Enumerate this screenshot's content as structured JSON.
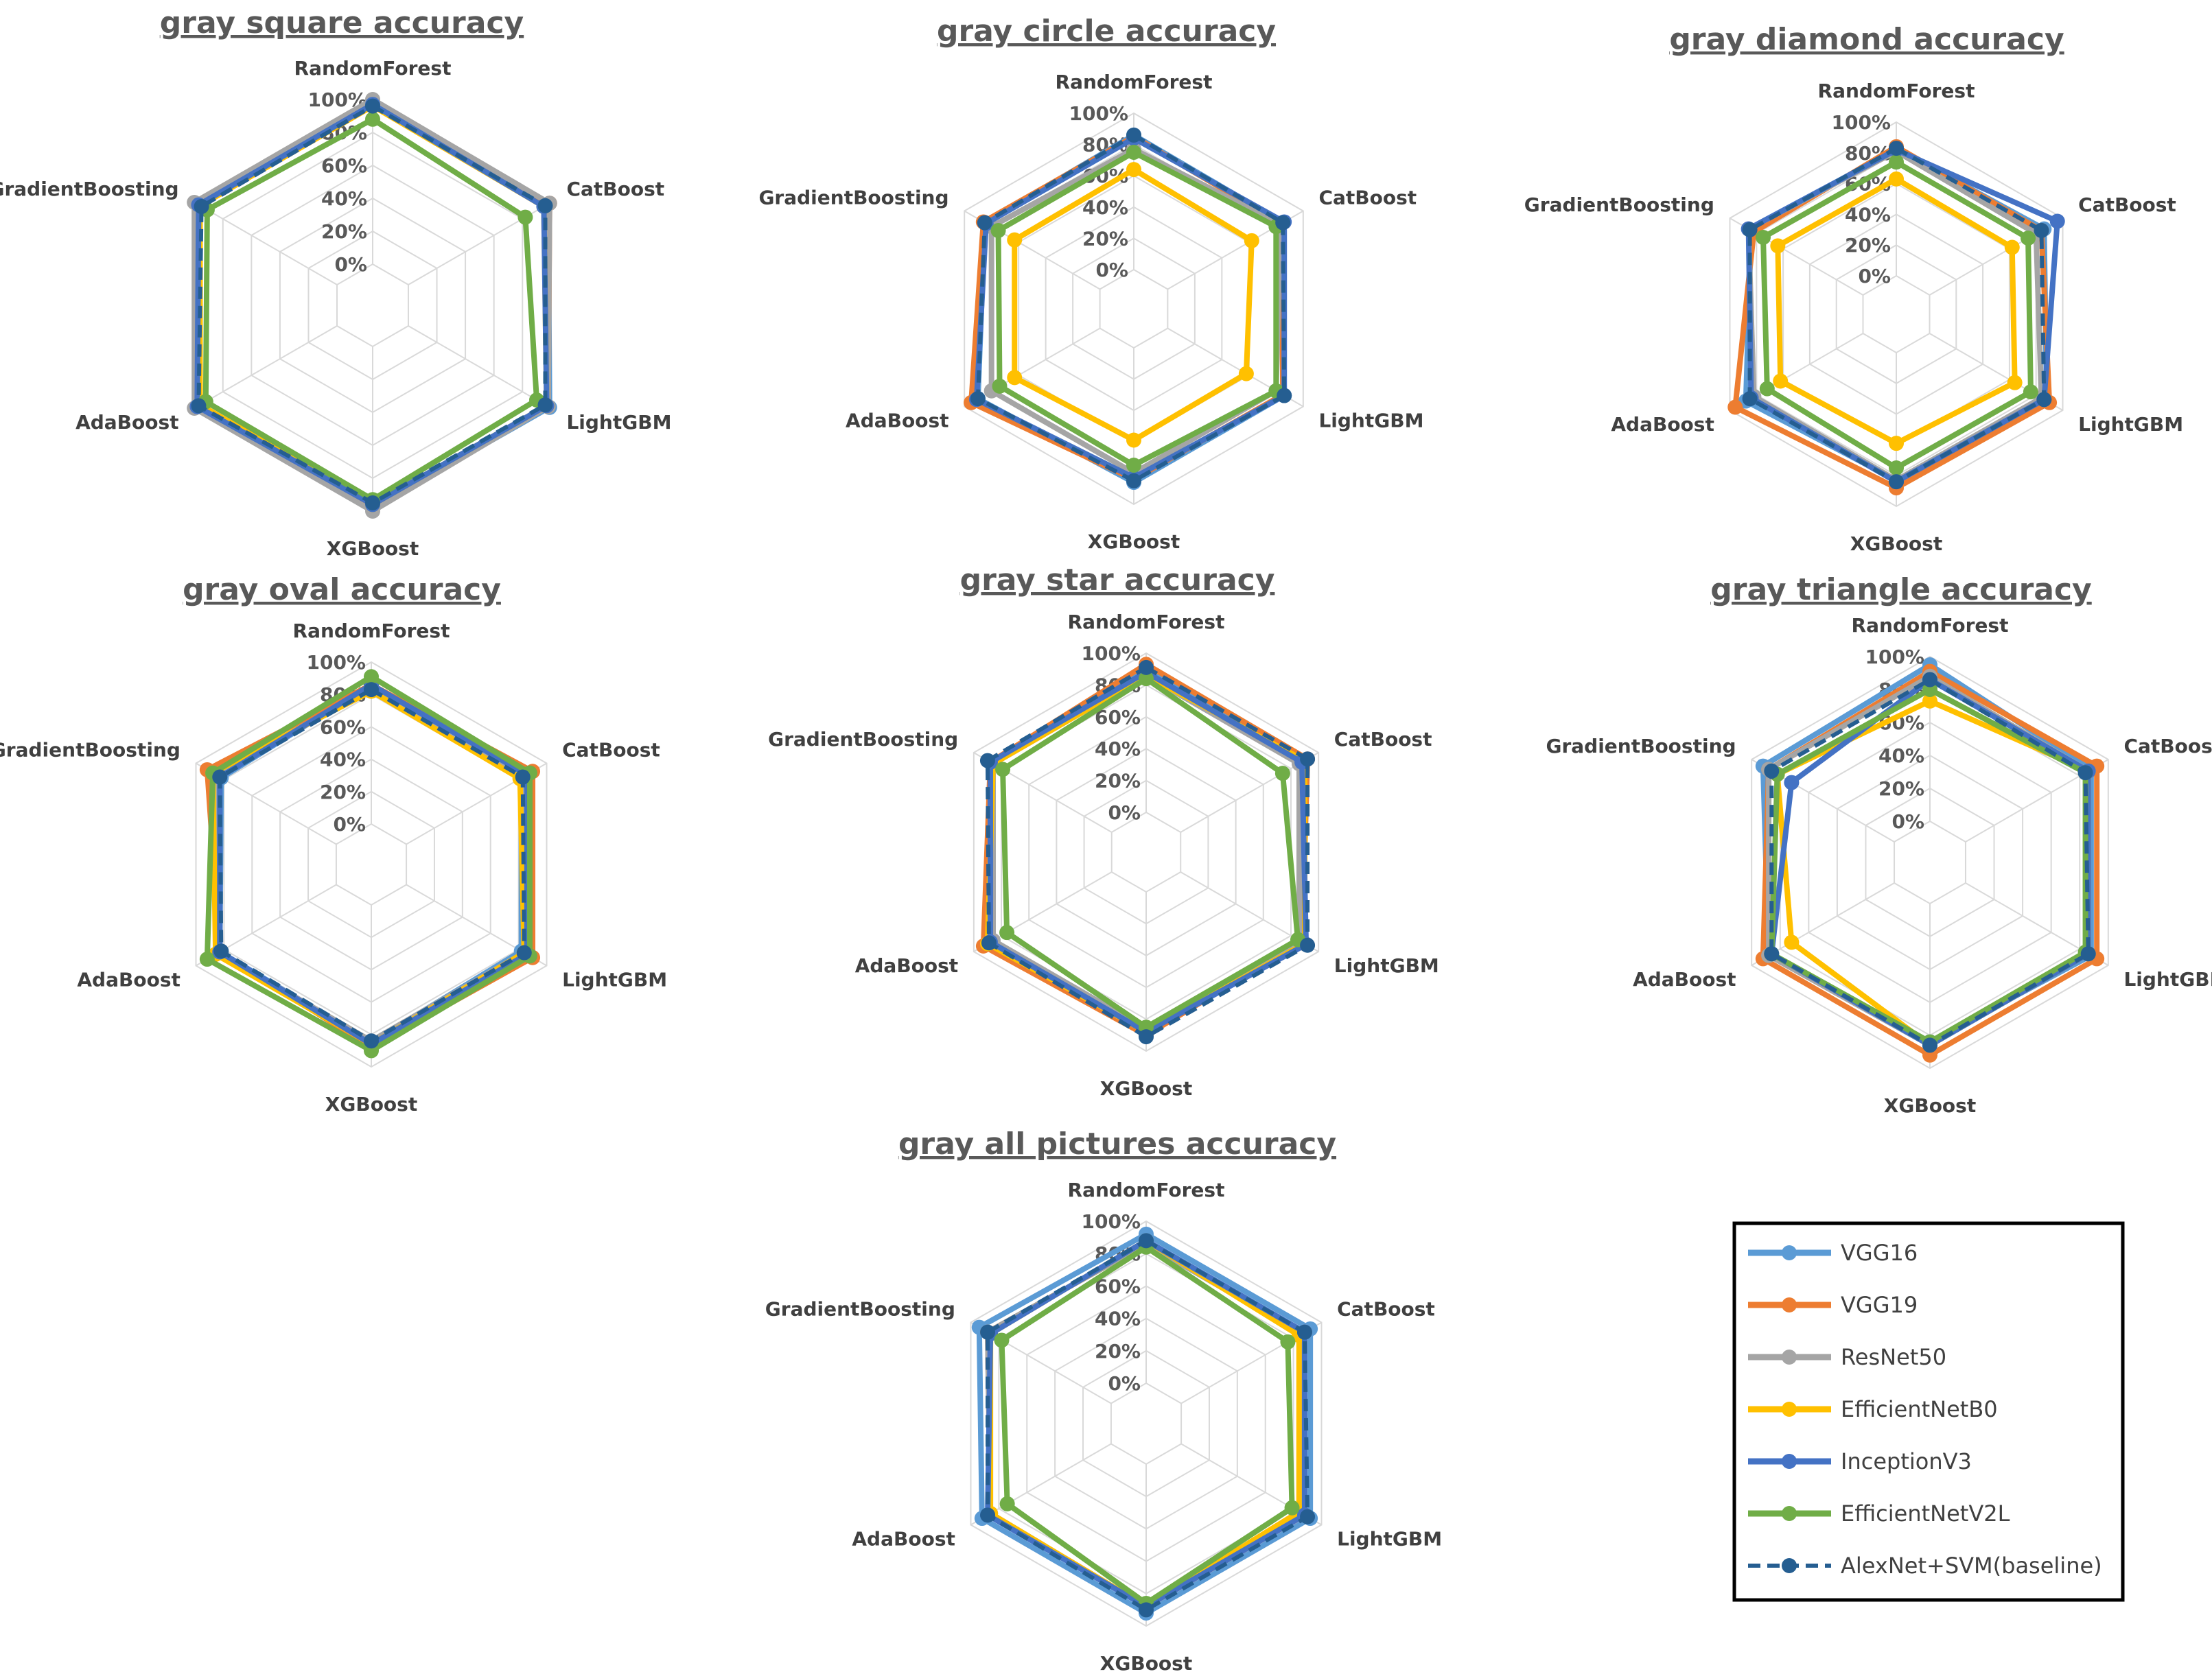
{
  "categories_order": [
    "RandomForest",
    "CatBoost",
    "LightGBM",
    "XGBoost",
    "AdaBoost",
    "GradientBoosting"
  ],
  "series_styles": [
    {
      "name": "VGG16",
      "color": "#5b9bd5",
      "dashed": false
    },
    {
      "name": "VGG19",
      "color": "#ed7d31",
      "dashed": false
    },
    {
      "name": "ResNet50",
      "color": "#a5a5a5",
      "dashed": false
    },
    {
      "name": "EfficientNetB0",
      "color": "#ffc000",
      "dashed": false
    },
    {
      "name": "InceptionV3",
      "color": "#4472c4",
      "dashed": false
    },
    {
      "name": "EfficientNetV2L",
      "color": "#70ad47",
      "dashed": false
    },
    {
      "name": "AlexNet+SVM(baseline)",
      "color": "#255e91",
      "dashed": true
    }
  ],
  "legend": {
    "items": [
      "VGG16",
      "VGG19",
      "ResNet50",
      "EfficientNetB0",
      "InceptionV3",
      "EfficientNetV2L",
      "AlexNet+SVM(baseline)"
    ]
  },
  "chart_data": [
    {
      "id": "square",
      "type": "radar",
      "title": "gray square accuracy",
      "categories": [
        "RandomForest",
        "CatBoost",
        "LightGBM",
        "XGBoost",
        "AdaBoost",
        "GradientBoosting"
      ],
      "ticks": [
        "0%",
        "20%",
        "40%",
        "60%",
        "80%",
        "100%"
      ],
      "rlim": [
        0,
        100
      ],
      "series": [
        {
          "name": "VGG16",
          "values": [
            99,
            98,
            99,
            98,
            99,
            98
          ]
        },
        {
          "name": "VGG19",
          "values": [
            97,
            99,
            98,
            97,
            97,
            97
          ]
        },
        {
          "name": "ResNet50",
          "values": [
            100,
            99,
            98,
            100,
            100,
            100
          ]
        },
        {
          "name": "EfficientNetB0",
          "values": [
            96,
            95,
            97,
            96,
            96,
            96
          ]
        },
        {
          "name": "InceptionV3",
          "values": [
            97,
            95,
            97,
            96,
            98,
            97
          ]
        },
        {
          "name": "EfficientNetV2L",
          "values": [
            88,
            82,
            90,
            93,
            92,
            91
          ]
        },
        {
          "name": "AlexNet+SVM(baseline)",
          "values": [
            96,
            96,
            96,
            95,
            97,
            95
          ]
        }
      ]
    },
    {
      "id": "circle",
      "type": "radar",
      "title": "gray circle accuracy",
      "categories": [
        "RandomForest",
        "CatBoost",
        "LightGBM",
        "XGBoost",
        "AdaBoost",
        "GradientBoosting"
      ],
      "ticks": [
        "0%",
        "20%",
        "40%",
        "60%",
        "80%",
        "100%"
      ],
      "rlim": [
        0,
        100
      ],
      "series": [
        {
          "name": "VGG16",
          "values": [
            86,
            85,
            86,
            86,
            90,
            85
          ]
        },
        {
          "name": "VGG19",
          "values": [
            85,
            84,
            85,
            84,
            95,
            86
          ]
        },
        {
          "name": "ResNet50",
          "values": [
            77,
            83,
            80,
            80,
            80,
            80
          ]
        },
        {
          "name": "EfficientNetB0",
          "values": [
            64,
            62,
            58,
            59,
            63,
            63
          ]
        },
        {
          "name": "InceptionV3",
          "values": [
            84,
            86,
            86,
            83,
            91,
            84
          ]
        },
        {
          "name": "EfficientNetV2L",
          "values": [
            75,
            80,
            80,
            75,
            74,
            75
          ]
        },
        {
          "name": "AlexNet+SVM(baseline)",
          "values": [
            86,
            85,
            86,
            85,
            90,
            85
          ]
        }
      ]
    },
    {
      "id": "diamond",
      "type": "radar",
      "title": "gray diamond accuracy",
      "categories": [
        "RandomForest",
        "CatBoost",
        "LightGBM",
        "XGBoost",
        "AdaBoost",
        "GradientBoosting"
      ],
      "ticks": [
        "0%",
        "20%",
        "40%",
        "60%",
        "80%",
        "100%"
      ],
      "rlim": [
        0,
        100
      ],
      "series": [
        {
          "name": "VGG16",
          "values": [
            83,
            86,
            88,
            83,
            88,
            84
          ]
        },
        {
          "name": "VGG19",
          "values": [
            84,
            84,
            90,
            88,
            96,
            82
          ]
        },
        {
          "name": "ResNet50",
          "values": [
            81,
            80,
            84,
            83,
            82,
            86
          ]
        },
        {
          "name": "EfficientNetB0",
          "values": [
            63,
            62,
            64,
            59,
            62,
            64
          ]
        },
        {
          "name": "InceptionV3",
          "values": [
            82,
            96,
            86,
            84,
            84,
            86
          ]
        },
        {
          "name": "EfficientNetV2L",
          "values": [
            74,
            74,
            76,
            75,
            72,
            75
          ]
        },
        {
          "name": "AlexNet+SVM(baseline)",
          "values": [
            83,
            84,
            86,
            84,
            85,
            85
          ]
        }
      ]
    },
    {
      "id": "oval",
      "type": "radar",
      "title": "gray oval accuracy",
      "categories": [
        "RandomForest",
        "CatBoost",
        "LightGBM",
        "XGBoost",
        "AdaBoost",
        "GradientBoosting"
      ],
      "ticks": [
        "0%",
        "20%",
        "40%",
        "60%",
        "80%",
        "100%"
      ],
      "rlim": [
        0,
        100
      ],
      "series": [
        {
          "name": "VGG16",
          "values": [
            86,
            82,
            82,
            85,
            83,
            82
          ]
        },
        {
          "name": "VGG19",
          "values": [
            86,
            90,
            90,
            88,
            83,
            92
          ]
        },
        {
          "name": "ResNet50",
          "values": [
            84,
            84,
            84,
            84,
            84,
            86
          ]
        },
        {
          "name": "EfficientNetB0",
          "values": [
            82,
            81,
            84,
            86,
            86,
            88
          ]
        },
        {
          "name": "InceptionV3",
          "values": [
            86,
            86,
            86,
            86,
            83,
            83
          ]
        },
        {
          "name": "EfficientNetV2L",
          "values": [
            91,
            88,
            88,
            90,
            92,
            88
          ]
        },
        {
          "name": "AlexNet+SVM(baseline)",
          "values": [
            83,
            83,
            84,
            84,
            82,
            83
          ]
        }
      ]
    },
    {
      "id": "star",
      "type": "radar",
      "title": "gray star accuracy",
      "categories": [
        "RandomForest",
        "CatBoost",
        "LightGBM",
        "XGBoost",
        "AdaBoost",
        "GradientBoosting"
      ],
      "ticks": [
        "0%",
        "20%",
        "40%",
        "60%",
        "80%",
        "100%"
      ],
      "rlim": [
        0,
        100
      ],
      "series": [
        {
          "name": "VGG16",
          "values": [
            90,
            88,
            88,
            86,
            88,
            88
          ]
        },
        {
          "name": "VGG19",
          "values": [
            93,
            92,
            88,
            90,
            93,
            88
          ]
        },
        {
          "name": "ResNet50",
          "values": [
            86,
            86,
            86,
            86,
            86,
            86
          ]
        },
        {
          "name": "EfficientNetB0",
          "values": [
            86,
            90,
            90,
            88,
            90,
            86
          ]
        },
        {
          "name": "InceptionV3",
          "values": [
            88,
            88,
            91,
            88,
            88,
            88
          ]
        },
        {
          "name": "EfficientNetV2L",
          "values": [
            84,
            74,
            85,
            85,
            76,
            79
          ]
        },
        {
          "name": "AlexNet+SVM(baseline)",
          "values": [
            91,
            92,
            92,
            91,
            89,
            90
          ]
        }
      ]
    },
    {
      "id": "triangle",
      "type": "radar",
      "title": "gray triangle accuracy",
      "categories": [
        "RandomForest",
        "CatBoost",
        "LightGBM",
        "XGBoost",
        "AdaBoost",
        "GradientBoosting"
      ],
      "ticks": [
        "0%",
        "20%",
        "40%",
        "60%",
        "80%",
        "100%"
      ],
      "rlim": [
        0,
        100
      ],
      "series": [
        {
          "name": "VGG16",
          "values": [
            95,
            88,
            88,
            84,
            88,
            92
          ]
        },
        {
          "name": "VGG19",
          "values": [
            91,
            92,
            92,
            92,
            92,
            88
          ]
        },
        {
          "name": "ResNet50",
          "values": [
            88,
            86,
            86,
            86,
            88,
            88
          ]
        },
        {
          "name": "EfficientNetB0",
          "values": [
            73,
            86,
            86,
            86,
            72,
            82
          ]
        },
        {
          "name": "InceptionV3",
          "values": [
            86,
            86,
            86,
            86,
            86,
            72
          ]
        },
        {
          "name": "EfficientNetV2L",
          "values": [
            80,
            84,
            84,
            84,
            86,
            82
          ]
        },
        {
          "name": "AlexNet+SVM(baseline)",
          "values": [
            86,
            84,
            86,
            86,
            86,
            86
          ]
        }
      ]
    },
    {
      "id": "all",
      "type": "radar",
      "title": "gray all pictures accuracy",
      "categories": [
        "RandomForest",
        "CatBoost",
        "LightGBM",
        "XGBoost",
        "AdaBoost",
        "GradientBoosting"
      ],
      "ticks": [
        "0%",
        "20%",
        "40%",
        "60%",
        "80%",
        "100%"
      ],
      "rlim": [
        0,
        100
      ],
      "series": [
        {
          "name": "VGG16",
          "values": [
            92,
            92,
            92,
            92,
            92,
            94
          ]
        },
        {
          "name": "VGG19",
          "values": [
            86,
            88,
            88,
            88,
            86,
            88
          ]
        },
        {
          "name": "ResNet50",
          "values": [
            86,
            86,
            86,
            88,
            86,
            88
          ]
        },
        {
          "name": "EfficientNetB0",
          "values": [
            88,
            84,
            84,
            88,
            86,
            86
          ]
        },
        {
          "name": "InceptionV3",
          "values": [
            88,
            88,
            88,
            88,
            88,
            86
          ]
        },
        {
          "name": "EfficientNetV2L",
          "values": [
            84,
            76,
            79,
            86,
            74,
            78
          ]
        },
        {
          "name": "AlexNet+SVM(baseline)",
          "values": [
            88,
            88,
            90,
            90,
            88,
            88
          ]
        }
      ]
    }
  ]
}
